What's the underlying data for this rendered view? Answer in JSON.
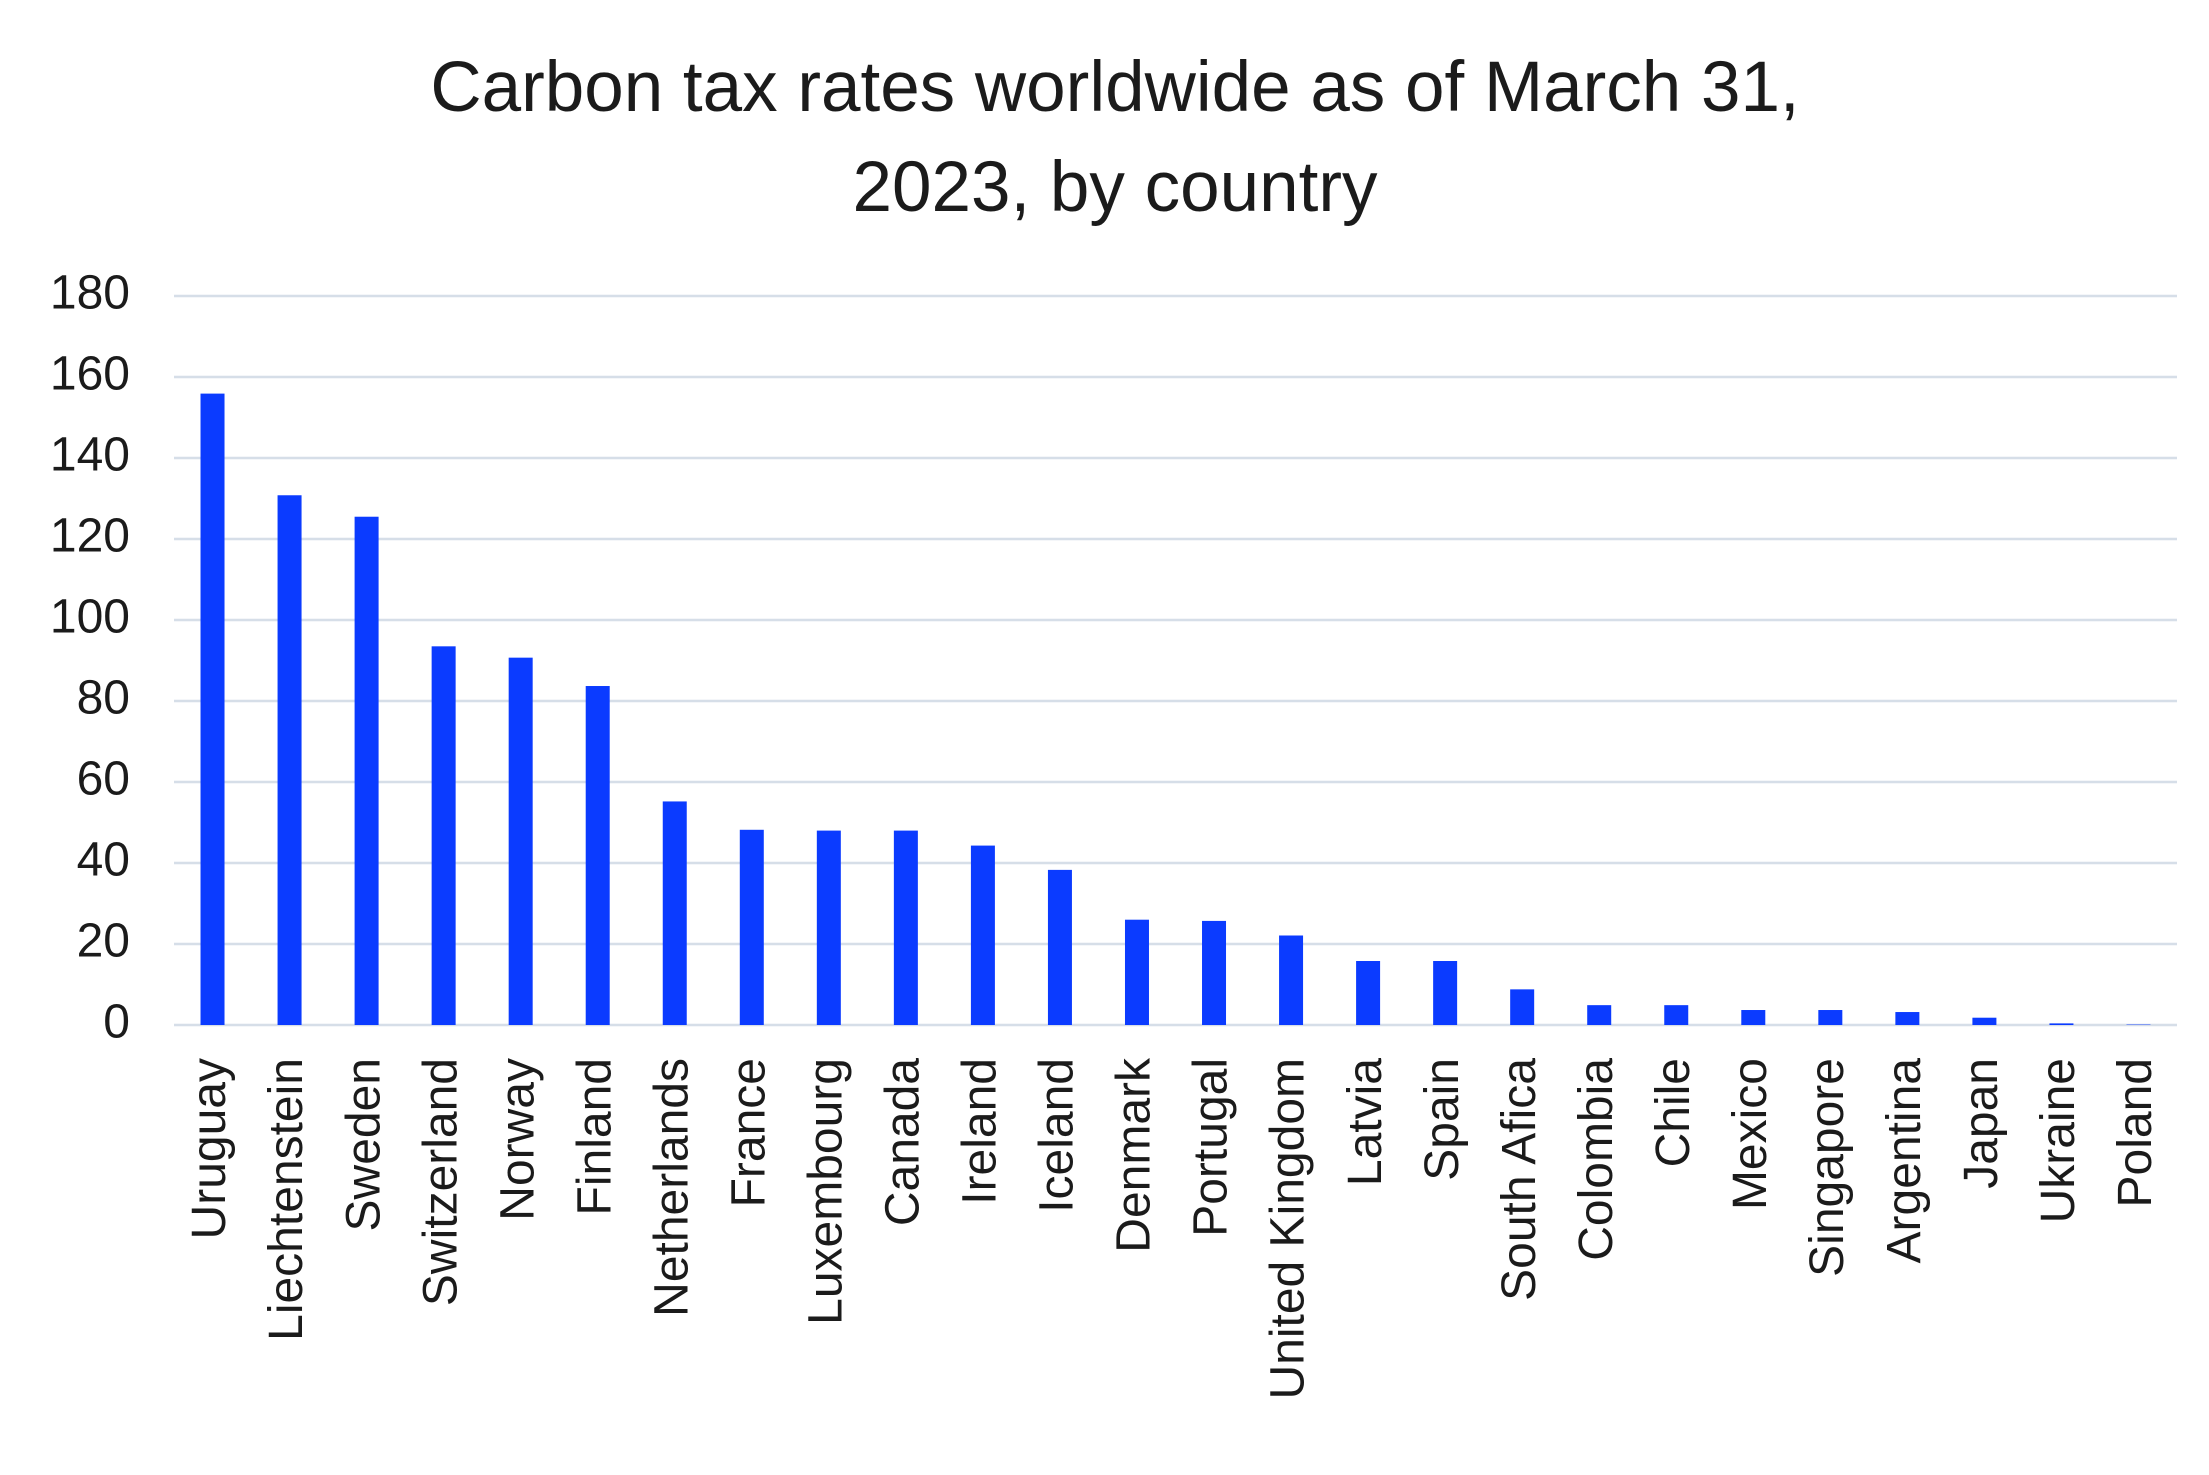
{
  "chart_data": {
    "type": "bar",
    "title": "Carbon tax rates worldwide as of March 31, 2023, by country",
    "categories": [
      "Uruguay",
      "Liechtenstein",
      "Sweden",
      "Switzerland",
      "Norway",
      "Finland",
      "Netherlands",
      "France",
      "Luxembourg",
      "Canada",
      "Ireland",
      "Iceland",
      "Denmark",
      "Portugal",
      "United Kingdom",
      "Latvia",
      "Spain",
      "South Afica",
      "Colombia",
      "Chile",
      "Mexico",
      "Singapore",
      "Argentina",
      "Japan",
      "Ukraine",
      "Poland"
    ],
    "values": [
      155.9,
      130.8,
      125.5,
      93.5,
      90.7,
      83.7,
      55.2,
      48.2,
      48,
      48,
      44.3,
      38.3,
      26,
      25.7,
      22.1,
      15.8,
      15.8,
      8.8,
      4.9,
      4.9,
      3.7,
      3.7,
      3.2,
      1.8,
      0.4,
      0.1
    ],
    "color": "#0b3bff",
    "ylim": [
      0,
      180
    ],
    "yticks": [
      0,
      20,
      40,
      60,
      80,
      100,
      120,
      140,
      160,
      180
    ],
    "grid": true
  }
}
